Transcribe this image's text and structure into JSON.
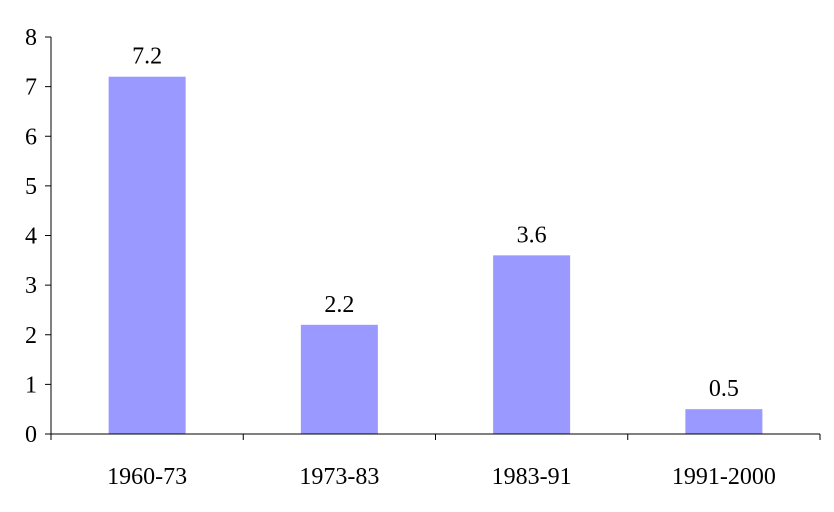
{
  "chart_data": {
    "type": "bar",
    "categories": [
      "1960-73",
      "1973-83",
      "1983-91",
      "1991-2000"
    ],
    "values": [
      7.2,
      2.2,
      3.6,
      0.5
    ],
    "data_labels": [
      "7.2",
      "2.2",
      "3.6",
      "0.5"
    ],
    "title": "",
    "xlabel": "",
    "ylabel": "",
    "ylim": [
      0,
      8
    ],
    "yticks": [
      "0",
      "1",
      "2",
      "3",
      "4",
      "5",
      "6",
      "7",
      "8"
    ],
    "grid": false,
    "legend": "none",
    "bar_color": "#9999ff",
    "axis_color": "#000000"
  }
}
